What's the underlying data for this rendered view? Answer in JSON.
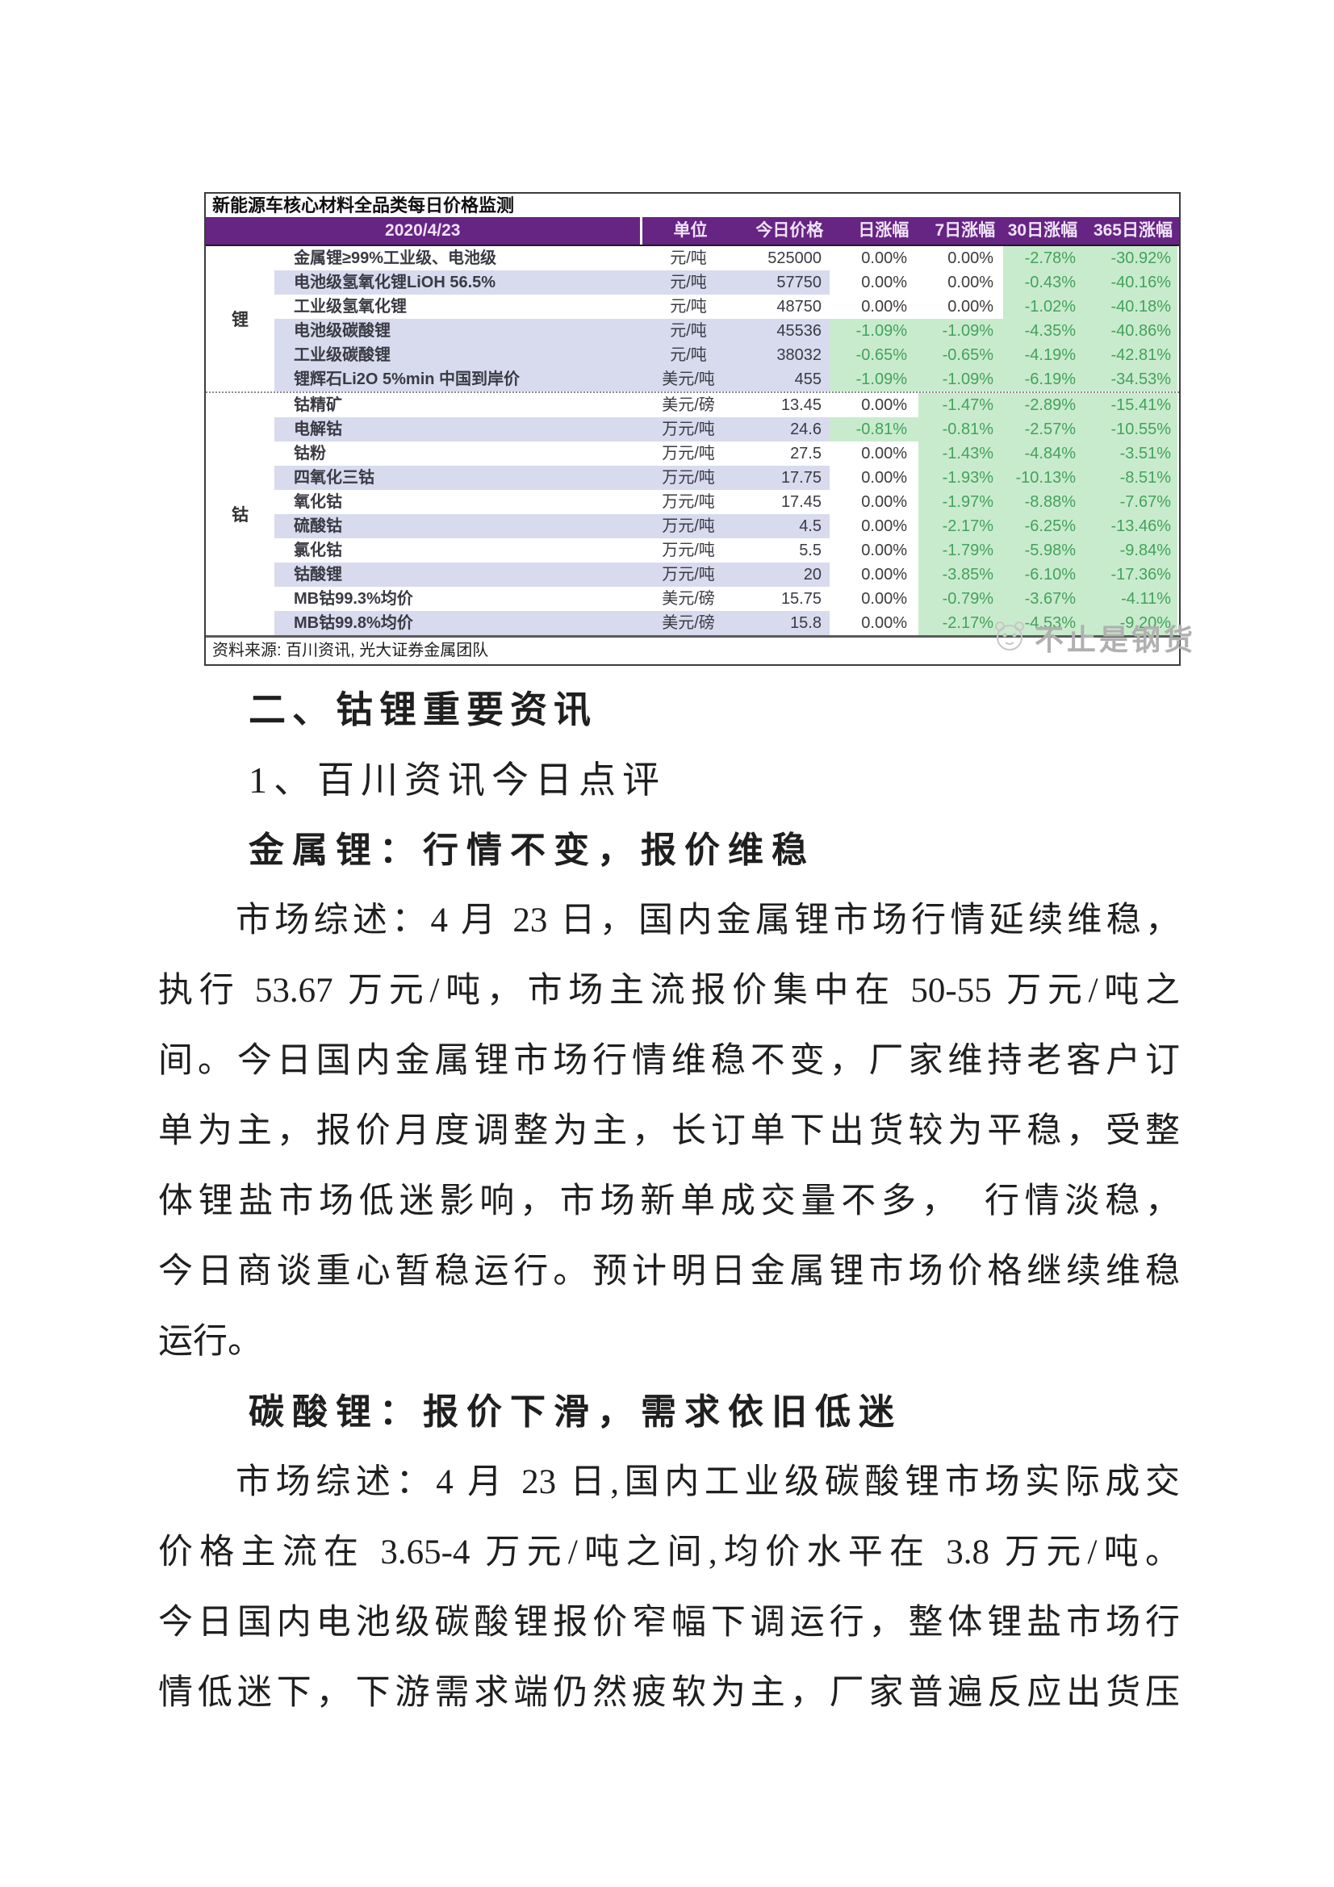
{
  "table": {
    "title": "新能源车核心材料全品类每日价格监测",
    "source_note": "资料来源: 百川资讯, 光大证券金属团队",
    "watermark": "不止是钢货",
    "columns": {
      "date": "2020/4/23",
      "unit": "单位",
      "price": "今日价格",
      "d1": "日涨幅",
      "d7": "7日涨幅",
      "d30": "30日涨幅",
      "d365": "365日涨幅"
    },
    "colors": {
      "header_bg": "#662483",
      "stripe": "#d8dbed",
      "negative_bg": "#c9ebcd",
      "negative_text": "#43a25c"
    },
    "groups": [
      {
        "label": "锂",
        "rows": [
          {
            "name": "金属锂≥99%工业级、电池级",
            "unit": "元/吨",
            "price": "525000",
            "d1": "0.00%",
            "d7": "0.00%",
            "d30": "-2.78%",
            "d365": "-30.92%",
            "shaded": false
          },
          {
            "name": "电池级氢氧化锂LiOH 56.5%",
            "unit": "元/吨",
            "price": "57750",
            "d1": "0.00%",
            "d7": "0.00%",
            "d30": "-0.43%",
            "d365": "-40.16%",
            "shaded": true
          },
          {
            "name": "工业级氢氧化锂",
            "unit": "元/吨",
            "price": "48750",
            "d1": "0.00%",
            "d7": "0.00%",
            "d30": "-1.02%",
            "d365": "-40.18%",
            "shaded": false
          },
          {
            "name": "电池级碳酸锂",
            "unit": "元/吨",
            "price": "45536",
            "d1": "-1.09%",
            "d7": "-1.09%",
            "d30": "-4.35%",
            "d365": "-40.86%",
            "shaded": true
          },
          {
            "name": "工业级碳酸锂",
            "unit": "元/吨",
            "price": "38032",
            "d1": "-0.65%",
            "d7": "-0.65%",
            "d30": "-4.19%",
            "d365": "-42.81%",
            "shaded": true
          },
          {
            "name": "锂辉石Li2O 5%min 中国到岸价",
            "unit": "美元/吨",
            "price": "455",
            "d1": "-1.09%",
            "d7": "-1.09%",
            "d30": "-6.19%",
            "d365": "-34.53%",
            "shaded": true
          }
        ]
      },
      {
        "label": "钴",
        "rows": [
          {
            "name": "钴精矿",
            "unit": "美元/磅",
            "price": "13.45",
            "d1": "0.00%",
            "d7": "-1.47%",
            "d30": "-2.89%",
            "d365": "-15.41%",
            "shaded": false
          },
          {
            "name": "电解钴",
            "unit": "万元/吨",
            "price": "24.6",
            "d1": "-0.81%",
            "d7": "-0.81%",
            "d30": "-2.57%",
            "d365": "-10.55%",
            "shaded": true
          },
          {
            "name": "钴粉",
            "unit": "万元/吨",
            "price": "27.5",
            "d1": "0.00%",
            "d7": "-1.43%",
            "d30": "-4.84%",
            "d365": "-3.51%",
            "shaded": false
          },
          {
            "name": "四氧化三钴",
            "unit": "万元/吨",
            "price": "17.75",
            "d1": "0.00%",
            "d7": "-1.93%",
            "d30": "-10.13%",
            "d365": "-8.51%",
            "shaded": true
          },
          {
            "name": "氧化钴",
            "unit": "万元/吨",
            "price": "17.45",
            "d1": "0.00%",
            "d7": "-1.97%",
            "d30": "-8.88%",
            "d365": "-7.67%",
            "shaded": false
          },
          {
            "name": "硫酸钴",
            "unit": "万元/吨",
            "price": "4.5",
            "d1": "0.00%",
            "d7": "-2.17%",
            "d30": "-6.25%",
            "d365": "-13.46%",
            "shaded": true
          },
          {
            "name": "氯化钴",
            "unit": "万元/吨",
            "price": "5.5",
            "d1": "0.00%",
            "d7": "-1.79%",
            "d30": "-5.98%",
            "d365": "-9.84%",
            "shaded": false
          },
          {
            "name": "钴酸锂",
            "unit": "万元/吨",
            "price": "20",
            "d1": "0.00%",
            "d7": "-3.85%",
            "d30": "-6.10%",
            "d365": "-17.36%",
            "shaded": true
          },
          {
            "name": "MB钴99.3%均价",
            "unit": "美元/磅",
            "price": "15.75",
            "d1": "0.00%",
            "d7": "-0.79%",
            "d30": "-3.67%",
            "d365": "-4.11%",
            "shaded": false
          },
          {
            "name": "MB钴99.8%均价",
            "unit": "美元/磅",
            "price": "15.8",
            "d1": "0.00%",
            "d7": "-2.17%",
            "d30": "-4.53%",
            "d365": "-9.20%",
            "shaded": true
          }
        ]
      }
    ]
  },
  "article": {
    "sections": [
      {
        "type": "heading",
        "cls": "h-sec",
        "text": "二、钴锂重要资讯"
      },
      {
        "type": "heading",
        "cls": "h-sub",
        "text": "1、百川资讯今日点评"
      },
      {
        "type": "heading",
        "cls": "h-topic",
        "text": "金属锂：行情不变，报价维稳"
      },
      {
        "type": "paragraph",
        "lines": [
          {
            "t": "市场综述：4 月 23 日，国内金属锂市场行情延续维稳，",
            "indent": true
          },
          {
            "t": "执行 53.67 万元/吨，市场主流报价集中在 50-55 万元/吨之"
          },
          {
            "t": "间。今日国内金属锂市场行情维稳不变，厂家维持老客户订"
          },
          {
            "t": "单为主，报价月度调整为主，长订单下出货较为平稳，受整"
          },
          {
            "t": "体锂盐市场低迷影响，市场新单成交量不多，　行情淡稳，"
          },
          {
            "t": "今日商谈重心暂稳运行。预计明日金属锂市场价格继续维稳"
          },
          {
            "t": "运行。",
            "end": true
          }
        ]
      },
      {
        "type": "heading",
        "cls": "h-topic",
        "text": "碳酸锂：报价下滑，需求依旧低迷"
      },
      {
        "type": "paragraph",
        "lines": [
          {
            "t": "市场综述：4 月 23 日,国内工业级碳酸锂市场实际成交",
            "indent": true
          },
          {
            "t": "价格主流在 3.65-4 万元/吨之间,均价水平在 3.8 万元/吨。"
          },
          {
            "t": "今日国内电池级碳酸锂报价窄幅下调运行，整体锂盐市场行"
          },
          {
            "t": "情低迷下，下游需求端仍然疲软为主，厂家普遍反应出货压"
          }
        ]
      }
    ]
  }
}
